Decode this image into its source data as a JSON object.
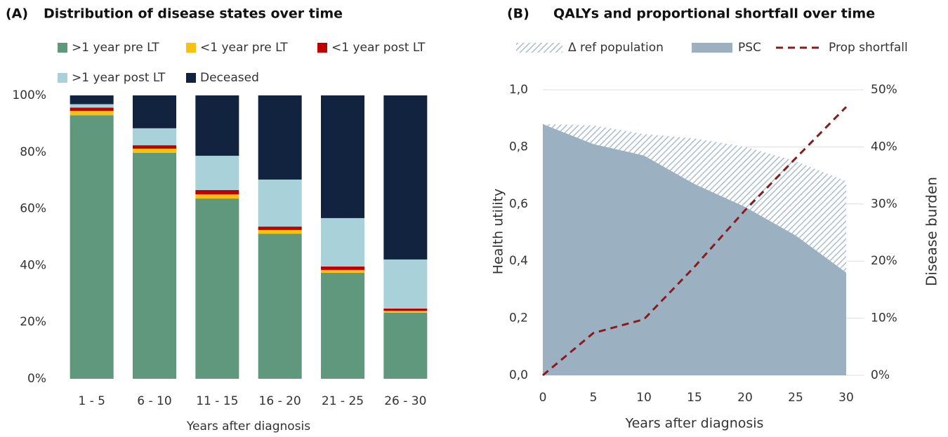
{
  "chart_data": [
    {
      "type": "bar",
      "panel_label": "(A)",
      "title": "Distribution of disease states over time",
      "categories": [
        "1 - 5",
        "6 - 10",
        "11 - 15",
        "16 - 20",
        "21 - 25",
        "26 - 30"
      ],
      "series": [
        {
          "name": ">1 year pre LT",
          "color": "#5f987c",
          "values": [
            93,
            79.7,
            63.6,
            51.2,
            37.4,
            23.3
          ]
        },
        {
          "name": "<1 year pre LT",
          "color": "#f7c20f",
          "values": [
            1.5,
            1.5,
            1.5,
            1.3,
            1,
            0.7
          ]
        },
        {
          "name": "<1 year post LT",
          "color": "#c00000",
          "values": [
            1.2,
            1.2,
            1.5,
            1.2,
            1.2,
            0.8
          ]
        },
        {
          "name": ">1 year post LT",
          "color": "#a9d1da",
          "values": [
            1.2,
            6,
            12.1,
            16.6,
            17.1,
            17.3
          ]
        },
        {
          "name": "Deceased",
          "color": "#12233f",
          "values": [
            3.1,
            11.6,
            21.3,
            29.7,
            43.3,
            57.9
          ]
        }
      ],
      "x_label": "Years after diagnosis",
      "ylim": [
        0,
        100
      ],
      "yticks": [
        {
          "value": 0,
          "label": "0%"
        },
        {
          "value": 20,
          "label": "20%"
        },
        {
          "value": 40,
          "label": "40%"
        },
        {
          "value": 60,
          "label": "60%"
        },
        {
          "value": 80,
          "label": "80%"
        },
        {
          "value": 100,
          "label": "100%"
        }
      ],
      "grid": false
    },
    {
      "type": "area",
      "panel_label": "(B)",
      "title": "QALYs and proportional shortfall over time",
      "x": [
        0,
        5,
        10,
        15,
        20,
        25,
        30
      ],
      "series": [
        {
          "name": "Δ ref population",
          "color": "#9bb1c2",
          "hatch": true,
          "values": [
            0,
            0.065,
            0.075,
            0.16,
            0.21,
            0.26,
            0.32
          ]
        },
        {
          "name": "PSC",
          "color": "#9bb1c2",
          "values": [
            0.88,
            0.81,
            0.77,
            0.67,
            0.59,
            0.49,
            0.36
          ]
        },
        {
          "name": "Prop shortfall",
          "color": "#8b1a1a",
          "axis": "y2",
          "values": [
            0,
            7.4,
            9.8,
            19,
            28.9,
            38,
            47
          ]
        }
      ],
      "x_label": "Years after diagnosis",
      "y_label": "Health utility",
      "y2_label": "Disease burden",
      "xlim": [
        0,
        30
      ],
      "xticks": [
        0,
        5,
        10,
        15,
        20,
        25,
        30
      ],
      "ylim": [
        0,
        1
      ],
      "yticks": [
        {
          "value": 0,
          "label": "0,0"
        },
        {
          "value": 0.2,
          "label": "0,2"
        },
        {
          "value": 0.4,
          "label": "0,4"
        },
        {
          "value": 0.6,
          "label": "0,6"
        },
        {
          "value": 0.8,
          "label": "0,8"
        },
        {
          "value": 1,
          "label": "1,0"
        }
      ],
      "y2lim": [
        0,
        50
      ],
      "y2ticks": [
        {
          "value": 0,
          "label": "0%"
        },
        {
          "value": 10,
          "label": "10%"
        },
        {
          "value": 20,
          "label": "20%"
        },
        {
          "value": 30,
          "label": "30%"
        },
        {
          "value": 40,
          "label": "40%"
        },
        {
          "value": 50,
          "label": "50%"
        }
      ],
      "grid": true
    }
  ]
}
